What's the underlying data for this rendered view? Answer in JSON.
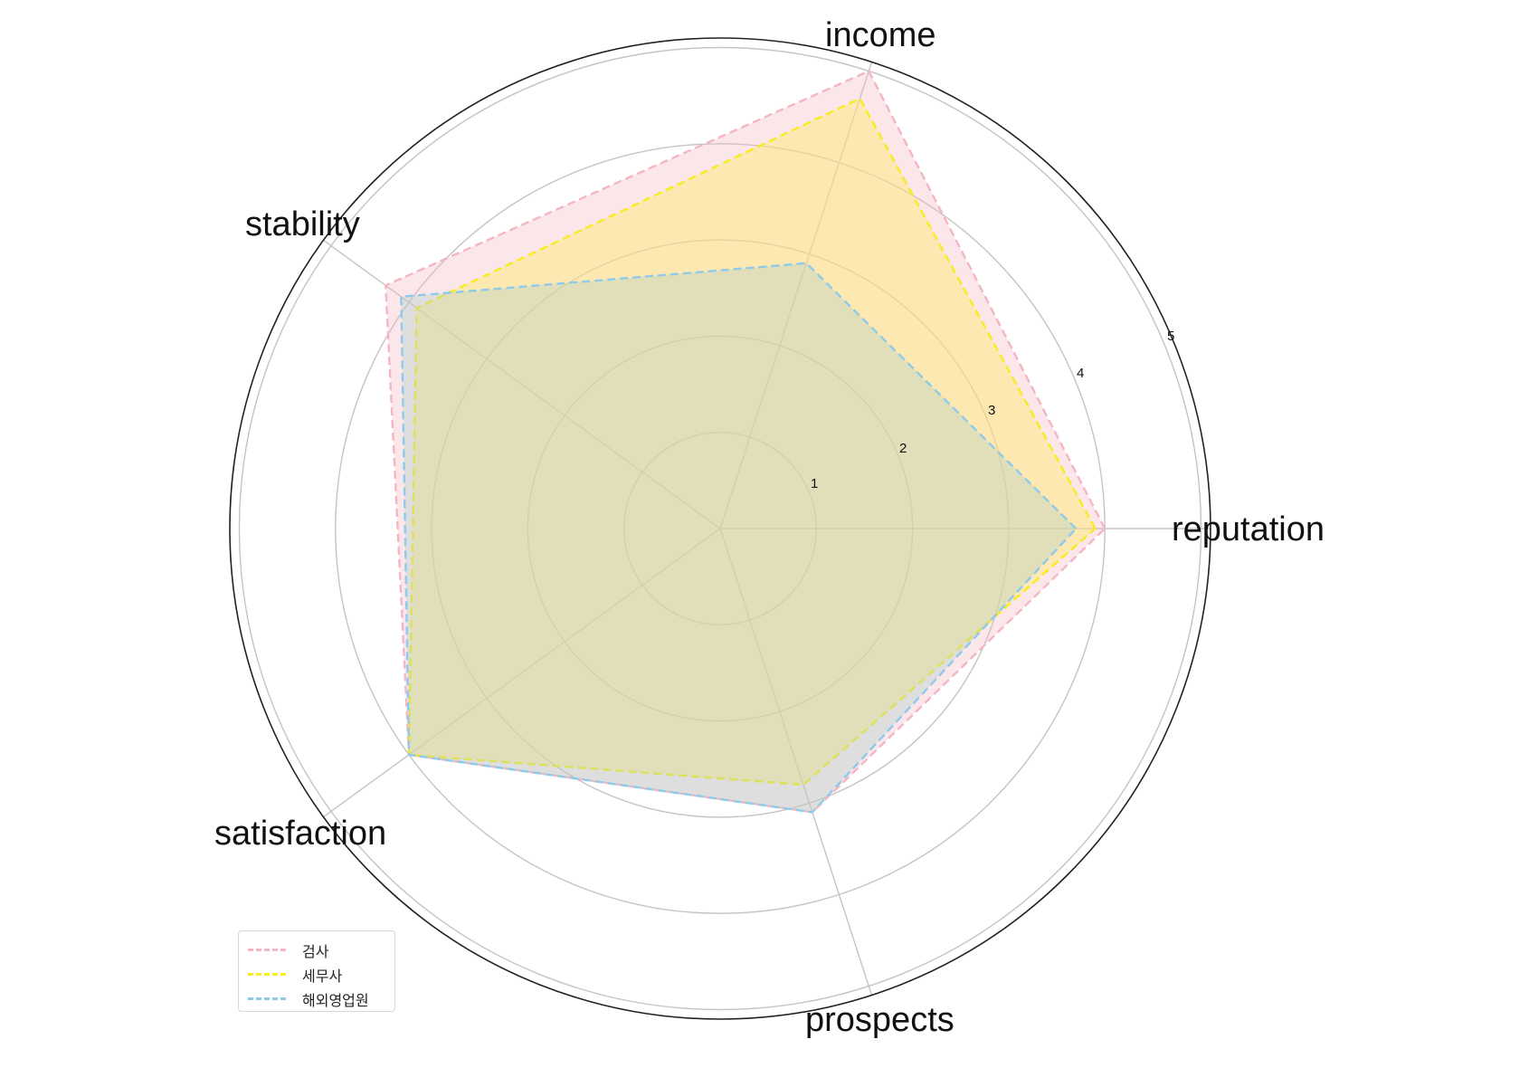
{
  "chart_data": {
    "type": "radar",
    "title": "",
    "axes": [
      "reputation",
      "income",
      "stability",
      "satisfaction",
      "prospects"
    ],
    "radial_ticks": [
      "1",
      "2",
      "3",
      "4",
      "5"
    ],
    "rlim": [
      0,
      5
    ],
    "grid": true,
    "legend_position": "lower left",
    "series": [
      {
        "name": "검사",
        "color": "#f4b6c2",
        "fill": "rgba(244,182,194,0.35)",
        "values": [
          4.0,
          5.0,
          4.3,
          4.0,
          3.1
        ]
      },
      {
        "name": "세무사",
        "color": "#f7ec1e",
        "fill": "rgba(255,234,110,0.45)",
        "values": [
          3.9,
          4.7,
          3.9,
          4.0,
          2.8
        ]
      },
      {
        "name": "해외영업원",
        "color": "#8ecbea",
        "fill": "rgba(170,205,200,0.35)",
        "values": [
          3.7,
          2.9,
          4.1,
          4.0,
          3.1
        ]
      }
    ]
  },
  "labels": {
    "reputation": "reputation",
    "income": "income",
    "stability": "stability",
    "satisfaction": "satisfaction",
    "prospects": "prospects"
  },
  "ticks": {
    "t1": "1",
    "t2": "2",
    "t3": "3",
    "t4": "4",
    "t5": "5"
  },
  "legend": {
    "item0": "검사",
    "item1": "세무사",
    "item2": "해외영업원"
  }
}
